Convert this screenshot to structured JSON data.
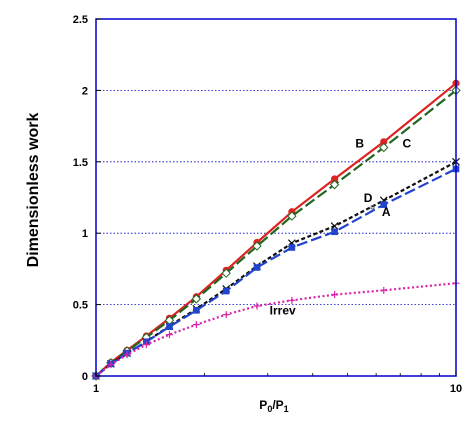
{
  "chart_data": {
    "type": "line",
    "ylabel": "Dimensionless work",
    "xlabel_base": "P",
    "xlabel_sub1": "0",
    "xlabel_mid": "/P",
    "xlabel_sub2": "1",
    "x_scale": "log",
    "xlim": [
      1,
      10
    ],
    "ylim": [
      0,
      2.5
    ],
    "x_ticks": [
      {
        "value": 1,
        "label": "1"
      },
      {
        "value": 10,
        "label": "10"
      }
    ],
    "y_ticks": [
      {
        "value": 0,
        "label": "0"
      },
      {
        "value": 0.5,
        "label": "0.5"
      },
      {
        "value": 1,
        "label": "1"
      },
      {
        "value": 1.5,
        "label": "1.5"
      },
      {
        "value": 2,
        "label": "2"
      },
      {
        "value": 2.5,
        "label": "2.5"
      }
    ],
    "grid": "horizontal dotted",
    "frame_color": "#0000cc",
    "series": [
      {
        "name": "B",
        "color": "#dd2222",
        "dash": "solid",
        "marker": "circle",
        "x": [
          1,
          1.1,
          1.22,
          1.38,
          1.6,
          1.9,
          2.3,
          2.8,
          3.5,
          4.6,
          6.3,
          10
        ],
        "y": [
          0,
          0.095,
          0.18,
          0.28,
          0.405,
          0.555,
          0.74,
          0.935,
          1.15,
          1.38,
          1.64,
          2.05
        ]
      },
      {
        "name": "C",
        "color": "#226622",
        "dash": "long",
        "marker": "diamond",
        "x": [
          1,
          1.1,
          1.22,
          1.38,
          1.6,
          1.9,
          2.3,
          2.8,
          3.5,
          4.6,
          6.3,
          10
        ],
        "y": [
          0,
          0.093,
          0.175,
          0.27,
          0.39,
          0.54,
          0.72,
          0.91,
          1.12,
          1.34,
          1.6,
          2.0
        ]
      },
      {
        "name": "D",
        "color": "#111111",
        "dash": "short",
        "marker": "cross",
        "x": [
          1,
          1.1,
          1.22,
          1.38,
          1.6,
          1.9,
          2.3,
          2.8,
          3.5,
          4.6,
          6.3,
          10
        ],
        "y": [
          0,
          0.085,
          0.16,
          0.24,
          0.35,
          0.47,
          0.61,
          0.77,
          0.93,
          1.05,
          1.23,
          1.5
        ]
      },
      {
        "name": "A",
        "color": "#2244cc",
        "dash": "long",
        "marker": "square",
        "x": [
          1,
          1.1,
          1.22,
          1.38,
          1.6,
          1.9,
          2.3,
          2.8,
          3.5,
          4.6,
          6.3,
          10
        ],
        "y": [
          0,
          0.085,
          0.16,
          0.24,
          0.345,
          0.46,
          0.595,
          0.76,
          0.9,
          1.01,
          1.2,
          1.45
        ]
      },
      {
        "name": "Irrev",
        "color": "#dd22aa",
        "dash": "dotted",
        "marker": "plus",
        "x": [
          1,
          1.1,
          1.22,
          1.38,
          1.6,
          1.9,
          2.3,
          2.8,
          3.5,
          4.6,
          6.3,
          10
        ],
        "y": [
          0,
          0.08,
          0.15,
          0.22,
          0.29,
          0.36,
          0.43,
          0.49,
          0.53,
          0.57,
          0.6,
          0.65
        ]
      }
    ],
    "annotations": [
      {
        "text": "B",
        "x": 5.4,
        "y": 1.6
      },
      {
        "text": "C",
        "x": 7.3,
        "y": 1.6
      },
      {
        "text": "D",
        "x": 5.7,
        "y": 1.22
      },
      {
        "text": "A",
        "x": 6.4,
        "y": 1.12
      },
      {
        "text": "Irrev",
        "x": 3.3,
        "y": 0.43
      }
    ]
  }
}
